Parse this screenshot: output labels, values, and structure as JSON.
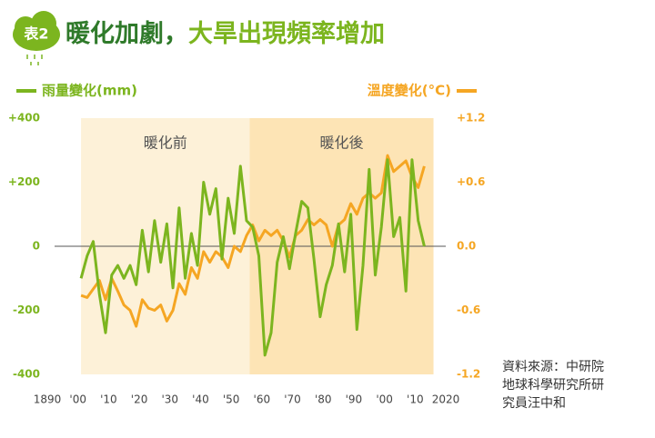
{
  "chart_data": {
    "type": "line",
    "badge": "表2",
    "title": "暖化加劇，",
    "title_highlight": "大旱出現頻率增加",
    "xlim": [
      1890,
      2020
    ],
    "xticks": [
      1890,
      {
        "value": 1900,
        "label": "'00"
      },
      {
        "value": 1910,
        "label": "'10"
      },
      {
        "value": 1920,
        "label": "'20"
      },
      {
        "value": 1930,
        "label": "'30"
      },
      {
        "value": 1940,
        "label": "'40"
      },
      {
        "value": 1950,
        "label": "'50"
      },
      {
        "value": 1960,
        "label": "'60"
      },
      {
        "value": 1970,
        "label": "'70"
      },
      {
        "value": 1980,
        "label": "'80"
      },
      {
        "value": 1990,
        "label": "'90"
      },
      {
        "value": 2000,
        "label": "'00"
      },
      {
        "value": 2010,
        "label": "'10"
      },
      2020
    ],
    "ylim": [
      -400,
      400
    ],
    "yticks": [
      {
        "value": 400,
        "label": "+400"
      },
      {
        "value": 200,
        "label": "+200"
      },
      0,
      -200,
      -400
    ],
    "y2lim": [
      -1.2,
      1.2
    ],
    "y2ticks": [
      {
        "value": 1.2,
        "label": "+1.2"
      },
      {
        "value": 0.6,
        "label": "+0.6"
      },
      {
        "value": 0,
        "label": "0.0"
      },
      -0.6,
      -1.2
    ],
    "regions": [
      {
        "label": "暖化前",
        "x": [
          1901,
          1956
        ],
        "color": "#fdf1d8"
      },
      {
        "label": "暖化後",
        "x": [
          1956,
          2016
        ],
        "color": "#fde4b5"
      }
    ],
    "x": [
      1901,
      1903,
      1905,
      1907,
      1909,
      1911,
      1913,
      1915,
      1917,
      1919,
      1921,
      1923,
      1925,
      1927,
      1929,
      1931,
      1933,
      1935,
      1937,
      1939,
      1941,
      1943,
      1945,
      1947,
      1949,
      1951,
      1953,
      1955,
      1957,
      1959,
      1961,
      1963,
      1965,
      1967,
      1969,
      1971,
      1973,
      1975,
      1977,
      1979,
      1981,
      1983,
      1985,
      1987,
      1989,
      1991,
      1993,
      1995,
      1997,
      1999,
      2001,
      2003,
      2005,
      2007,
      2009,
      2011,
      2013
    ],
    "series": [
      {
        "name": "雨量變化(mm)",
        "color": "#7cb51f",
        "values": [
          -100,
          -30,
          15,
          -150,
          -270,
          -90,
          -60,
          -100,
          -60,
          -120,
          50,
          -80,
          80,
          -50,
          70,
          -130,
          120,
          -100,
          40,
          -60,
          200,
          100,
          180,
          -40,
          150,
          40,
          250,
          80,
          60,
          -30,
          -340,
          -270,
          -50,
          30,
          -70,
          40,
          140,
          120,
          -40,
          -220,
          -120,
          -60,
          70,
          -80,
          100,
          -260,
          -60,
          240,
          -90,
          60,
          270,
          30,
          90,
          -140,
          270,
          80,
          0
        ]
      },
      {
        "name": "溫度變化(°C)",
        "color": "#f5a623",
        "axis": "y2",
        "values": [
          -0.46,
          -0.48,
          -0.4,
          -0.32,
          -0.5,
          -0.3,
          -0.42,
          -0.55,
          -0.6,
          -0.75,
          -0.5,
          -0.58,
          -0.6,
          -0.55,
          -0.7,
          -0.6,
          -0.35,
          -0.45,
          -0.2,
          -0.3,
          -0.05,
          -0.15,
          -0.05,
          -0.1,
          -0.2,
          0.0,
          -0.05,
          0.1,
          0.2,
          0.05,
          0.15,
          0.1,
          0.15,
          0.05,
          -0.1,
          0.1,
          0.15,
          0.25,
          0.2,
          0.25,
          0.2,
          0.0,
          0.2,
          0.25,
          0.4,
          0.3,
          0.45,
          0.5,
          0.45,
          0.5,
          0.85,
          0.7,
          0.75,
          0.8,
          0.65,
          0.55,
          0.75
        ]
      }
    ],
    "source": [
      "資料來源：中研院",
      "地球科學研究所研",
      "究員汪中和"
    ]
  }
}
